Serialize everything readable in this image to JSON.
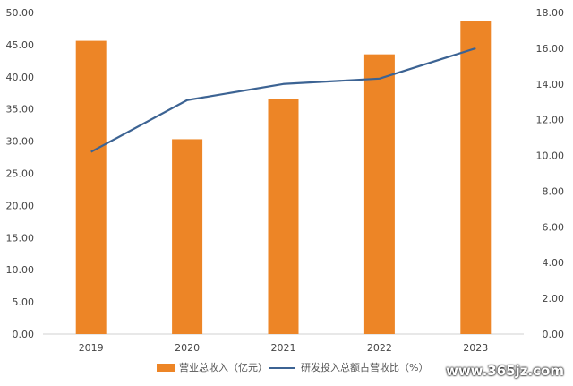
{
  "chart_data": {
    "type": "bar",
    "categories": [
      "2019",
      "2020",
      "2021",
      "2022",
      "2023"
    ],
    "series": [
      {
        "name": "营业总收入（亿元）",
        "kind": "bar",
        "axis": "left",
        "color": "#ED8526",
        "values": [
          45.6,
          30.3,
          36.5,
          43.5,
          48.7
        ]
      },
      {
        "name": "研发投入总额占营收比（%）",
        "kind": "line",
        "axis": "right",
        "color": "#3C6393",
        "values": [
          10.2,
          13.1,
          14.0,
          14.3,
          16.0
        ]
      }
    ],
    "left_axis": {
      "ylim": [
        0,
        50
      ],
      "ticks": [
        "0.00",
        "5.00",
        "10.00",
        "15.00",
        "20.00",
        "25.00",
        "30.00",
        "35.00",
        "40.00",
        "45.00",
        "50.00"
      ]
    },
    "right_axis": {
      "ylim": [
        0,
        18
      ],
      "ticks": [
        "0.00",
        "2.00",
        "4.00",
        "6.00",
        "8.00",
        "10.00",
        "12.00",
        "14.00",
        "16.00",
        "18.00"
      ]
    },
    "legend_position": "bottom-center",
    "grid": false
  },
  "watermark": "www.365jz.com"
}
